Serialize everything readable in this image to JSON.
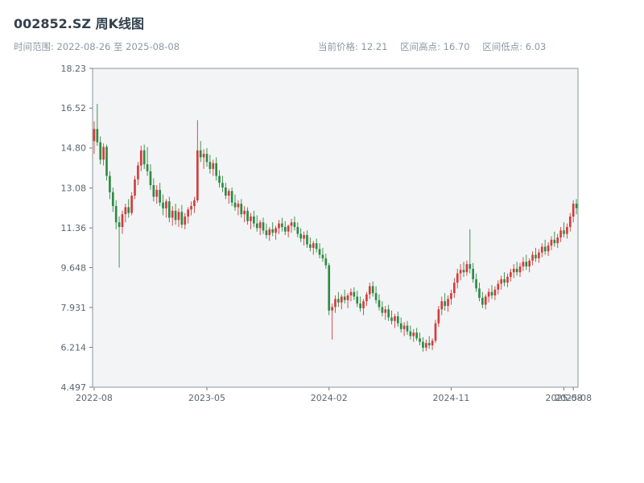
{
  "header": {
    "title": "002852.SZ 周K线图",
    "subtitle_left": "时间范围: 2022-08-26 至 2025-08-08",
    "current_price_label": "当前价格: 12.21",
    "range_high_label": "区间高点: 16.70",
    "range_low_label": "区间低点: 6.03"
  },
  "chart_data": {
    "type": "candlestick",
    "symbol": "002852.SZ",
    "interval": "weekly",
    "title": "002852.SZ 周K线图",
    "date_range": {
      "start": "2022-08-26",
      "end": "2025-08-08"
    },
    "current_price": 12.21,
    "range_high": 16.7,
    "range_low": 6.03,
    "ylim": [
      4.497,
      18.23
    ],
    "grid": false,
    "plot_bg": "#f3f4f5",
    "spine_color": "#8a949d",
    "up_color": "#d53b3b",
    "down_color": "#2c8a44",
    "y_ticks": [
      {
        "value": 18.23,
        "label": "18.23"
      },
      {
        "value": 16.52,
        "label": "16.52"
      },
      {
        "value": 14.8,
        "label": "14.80"
      },
      {
        "value": 13.08,
        "label": "13.08"
      },
      {
        "value": 11.36,
        "label": "11.36"
      },
      {
        "value": 9.648,
        "label": "9.648"
      },
      {
        "value": 7.931,
        "label": "7.931"
      },
      {
        "value": 6.214,
        "label": "6.214"
      },
      {
        "value": 4.497,
        "label": "4.497"
      }
    ],
    "x_ticks": [
      {
        "index": 0,
        "label": "2022-08"
      },
      {
        "index": 36,
        "label": "2023-05"
      },
      {
        "index": 75,
        "label": "2024-02"
      },
      {
        "index": 114,
        "label": "2024-11"
      },
      {
        "index": 150,
        "label": "2025-08"
      },
      {
        "index": 153,
        "label": "2025-08"
      }
    ],
    "candles": [
      [
        15.1,
        15.95,
        14.55,
        15.62
      ],
      [
        15.62,
        16.7,
        14.9,
        15.05
      ],
      [
        15.05,
        15.3,
        14.1,
        14.3
      ],
      [
        14.3,
        15.0,
        14.05,
        14.85
      ],
      [
        14.85,
        14.95,
        13.4,
        13.6
      ],
      [
        13.6,
        13.8,
        12.6,
        12.9
      ],
      [
        12.9,
        13.1,
        12.05,
        12.3
      ],
      [
        12.3,
        12.55,
        11.3,
        11.6
      ],
      [
        11.6,
        11.85,
        9.65,
        11.4
      ],
      [
        11.4,
        12.1,
        11.1,
        11.95
      ],
      [
        11.95,
        12.4,
        11.6,
        12.25
      ],
      [
        12.25,
        12.6,
        11.8,
        12.0
      ],
      [
        12.0,
        12.9,
        11.9,
        12.75
      ],
      [
        12.75,
        13.6,
        12.6,
        13.45
      ],
      [
        13.45,
        14.2,
        13.2,
        14.05
      ],
      [
        14.05,
        14.9,
        13.8,
        14.7
      ],
      [
        14.7,
        14.95,
        13.9,
        14.1
      ],
      [
        14.1,
        14.85,
        13.6,
        13.8
      ],
      [
        13.8,
        14.1,
        13.0,
        13.2
      ],
      [
        13.2,
        13.5,
        12.5,
        12.7
      ],
      [
        12.7,
        13.2,
        12.4,
        13.0
      ],
      [
        13.0,
        13.3,
        12.3,
        12.45
      ],
      [
        12.45,
        12.8,
        11.9,
        12.2
      ],
      [
        12.2,
        12.6,
        11.8,
        12.5
      ],
      [
        12.5,
        12.7,
        11.6,
        11.8
      ],
      [
        11.8,
        12.3,
        11.45,
        12.1
      ],
      [
        12.1,
        12.4,
        11.5,
        11.7
      ],
      [
        11.7,
        12.2,
        11.4,
        12.05
      ],
      [
        12.05,
        12.35,
        11.35,
        11.5
      ],
      [
        11.5,
        12.0,
        11.3,
        11.85
      ],
      [
        11.85,
        12.25,
        11.55,
        12.15
      ],
      [
        12.15,
        12.5,
        11.9,
        12.3
      ],
      [
        12.3,
        12.7,
        12.0,
        12.55
      ],
      [
        12.55,
        16.0,
        12.45,
        14.7
      ],
      [
        14.7,
        15.1,
        14.2,
        14.4
      ],
      [
        14.4,
        14.75,
        13.9,
        14.55
      ],
      [
        14.55,
        14.8,
        14.0,
        14.2
      ],
      [
        14.2,
        14.5,
        13.7,
        13.9
      ],
      [
        13.9,
        14.3,
        13.6,
        14.15
      ],
      [
        14.15,
        14.4,
        13.4,
        13.6
      ],
      [
        13.6,
        13.85,
        13.1,
        13.3
      ],
      [
        13.3,
        13.6,
        12.9,
        13.1
      ],
      [
        13.1,
        13.3,
        12.6,
        12.75
      ],
      [
        12.75,
        13.05,
        12.4,
        12.95
      ],
      [
        12.95,
        13.1,
        12.3,
        12.45
      ],
      [
        12.45,
        12.8,
        12.1,
        12.25
      ],
      [
        12.25,
        12.55,
        11.9,
        12.4
      ],
      [
        12.4,
        12.6,
        11.8,
        11.95
      ],
      [
        11.95,
        12.3,
        11.6,
        12.1
      ],
      [
        12.1,
        12.25,
        11.5,
        11.65
      ],
      [
        11.65,
        12.0,
        11.3,
        11.85
      ],
      [
        11.85,
        12.1,
        11.4,
        11.55
      ],
      [
        11.55,
        11.9,
        11.2,
        11.35
      ],
      [
        11.35,
        11.7,
        11.05,
        11.6
      ],
      [
        11.6,
        11.8,
        11.1,
        11.25
      ],
      [
        11.25,
        11.55,
        10.9,
        11.05
      ],
      [
        11.05,
        11.4,
        10.8,
        11.3
      ],
      [
        11.3,
        11.6,
        11.0,
        11.15
      ],
      [
        11.15,
        11.45,
        10.85,
        11.35
      ],
      [
        11.35,
        11.7,
        11.1,
        11.55
      ],
      [
        11.55,
        11.8,
        11.2,
        11.4
      ],
      [
        11.4,
        11.65,
        11.05,
        11.2
      ],
      [
        11.2,
        11.5,
        10.95,
        11.45
      ],
      [
        11.45,
        11.75,
        11.15,
        11.6
      ],
      [
        11.6,
        11.85,
        11.25,
        11.4
      ],
      [
        11.4,
        11.6,
        10.95,
        11.1
      ],
      [
        11.1,
        11.35,
        10.75,
        10.9
      ],
      [
        10.9,
        11.2,
        10.6,
        11.05
      ],
      [
        11.05,
        11.25,
        10.5,
        10.65
      ],
      [
        10.65,
        10.95,
        10.35,
        10.5
      ],
      [
        10.5,
        10.8,
        10.2,
        10.7
      ],
      [
        10.7,
        10.9,
        10.3,
        10.45
      ],
      [
        10.45,
        10.7,
        10.05,
        10.2
      ],
      [
        10.2,
        10.5,
        9.9,
        10.05
      ],
      [
        10.05,
        10.25,
        9.6,
        9.75
      ],
      [
        9.75,
        9.85,
        7.6,
        7.8
      ],
      [
        7.8,
        8.1,
        6.55,
        7.95
      ],
      [
        7.95,
        8.45,
        7.7,
        8.3
      ],
      [
        8.3,
        8.6,
        7.95,
        8.15
      ],
      [
        8.15,
        8.5,
        7.85,
        8.4
      ],
      [
        8.4,
        8.7,
        8.1,
        8.25
      ],
      [
        8.25,
        8.55,
        7.9,
        8.45
      ],
      [
        8.45,
        8.75,
        8.2,
        8.6
      ],
      [
        8.6,
        8.8,
        8.25,
        8.4
      ],
      [
        8.4,
        8.65,
        7.95,
        8.1
      ],
      [
        8.1,
        8.4,
        7.75,
        7.9
      ],
      [
        7.9,
        8.3,
        7.6,
        8.2
      ],
      [
        8.2,
        8.6,
        8.0,
        8.5
      ],
      [
        8.5,
        9.0,
        8.3,
        8.85
      ],
      [
        8.85,
        9.05,
        8.4,
        8.55
      ],
      [
        8.55,
        8.85,
        8.1,
        8.25
      ],
      [
        8.25,
        8.5,
        7.8,
        7.95
      ],
      [
        7.95,
        8.2,
        7.55,
        7.7
      ],
      [
        7.7,
        8.0,
        7.4,
        7.85
      ],
      [
        7.85,
        8.05,
        7.35,
        7.5
      ],
      [
        7.5,
        7.8,
        7.2,
        7.35
      ],
      [
        7.35,
        7.65,
        7.05,
        7.55
      ],
      [
        7.55,
        7.75,
        7.1,
        7.25
      ],
      [
        7.25,
        7.5,
        6.85,
        7.0
      ],
      [
        7.0,
        7.3,
        6.7,
        7.15
      ],
      [
        7.15,
        7.35,
        6.75,
        6.9
      ],
      [
        6.9,
        7.15,
        6.55,
        6.7
      ],
      [
        6.7,
        7.0,
        6.45,
        6.85
      ],
      [
        6.85,
        7.05,
        6.5,
        6.6
      ],
      [
        6.6,
        6.85,
        6.3,
        6.45
      ],
      [
        6.45,
        6.65,
        6.03,
        6.2
      ],
      [
        6.2,
        6.55,
        6.05,
        6.4
      ],
      [
        6.4,
        6.7,
        6.15,
        6.3
      ],
      [
        6.3,
        6.6,
        6.1,
        6.5
      ],
      [
        6.5,
        7.4,
        6.4,
        7.25
      ],
      [
        7.25,
        8.0,
        7.1,
        7.85
      ],
      [
        7.85,
        8.4,
        7.6,
        8.2
      ],
      [
        8.2,
        8.55,
        7.8,
        8.0
      ],
      [
        8.0,
        8.45,
        7.75,
        8.3
      ],
      [
        8.3,
        8.7,
        8.05,
        8.55
      ],
      [
        8.55,
        9.2,
        8.35,
        9.0
      ],
      [
        9.0,
        9.6,
        8.75,
        9.4
      ],
      [
        9.4,
        9.8,
        9.1,
        9.55
      ],
      [
        9.55,
        9.9,
        9.25,
        9.45
      ],
      [
        9.45,
        9.95,
        9.3,
        9.8
      ],
      [
        9.8,
        11.3,
        9.4,
        9.6
      ],
      [
        9.6,
        9.85,
        9.0,
        9.15
      ],
      [
        9.15,
        9.4,
        8.6,
        8.75
      ],
      [
        8.75,
        9.0,
        8.2,
        8.35
      ],
      [
        8.35,
        8.6,
        7.9,
        8.05
      ],
      [
        8.05,
        8.5,
        7.85,
        8.4
      ],
      [
        8.4,
        8.75,
        8.15,
        8.6
      ],
      [
        8.6,
        8.9,
        8.3,
        8.45
      ],
      [
        8.45,
        8.85,
        8.25,
        8.7
      ],
      [
        8.7,
        9.1,
        8.5,
        8.95
      ],
      [
        8.95,
        9.3,
        8.7,
        9.15
      ],
      [
        9.15,
        9.45,
        8.85,
        9.0
      ],
      [
        9.0,
        9.4,
        8.8,
        9.25
      ],
      [
        9.25,
        9.6,
        9.05,
        9.45
      ],
      [
        9.45,
        9.8,
        9.2,
        9.6
      ],
      [
        9.6,
        9.9,
        9.3,
        9.45
      ],
      [
        9.45,
        9.85,
        9.25,
        9.7
      ],
      [
        9.7,
        10.1,
        9.5,
        9.9
      ],
      [
        9.9,
        10.2,
        9.55,
        9.7
      ],
      [
        9.7,
        10.05,
        9.45,
        9.95
      ],
      [
        9.95,
        10.35,
        9.75,
        10.2
      ],
      [
        10.2,
        10.5,
        9.9,
        10.05
      ],
      [
        10.05,
        10.45,
        9.85,
        10.3
      ],
      [
        10.3,
        10.7,
        10.1,
        10.55
      ],
      [
        10.55,
        10.85,
        10.2,
        10.35
      ],
      [
        10.35,
        10.75,
        10.15,
        10.6
      ],
      [
        10.6,
        11.0,
        10.4,
        10.85
      ],
      [
        10.85,
        11.2,
        10.55,
        10.7
      ],
      [
        10.7,
        11.1,
        10.5,
        10.95
      ],
      [
        10.95,
        11.4,
        10.75,
        11.25
      ],
      [
        11.25,
        11.6,
        10.95,
        11.1
      ],
      [
        11.1,
        11.55,
        10.9,
        11.4
      ],
      [
        11.4,
        12.0,
        11.2,
        11.85
      ],
      [
        11.85,
        12.55,
        11.6,
        12.4
      ],
      [
        12.4,
        12.6,
        11.95,
        12.21
      ]
    ]
  }
}
